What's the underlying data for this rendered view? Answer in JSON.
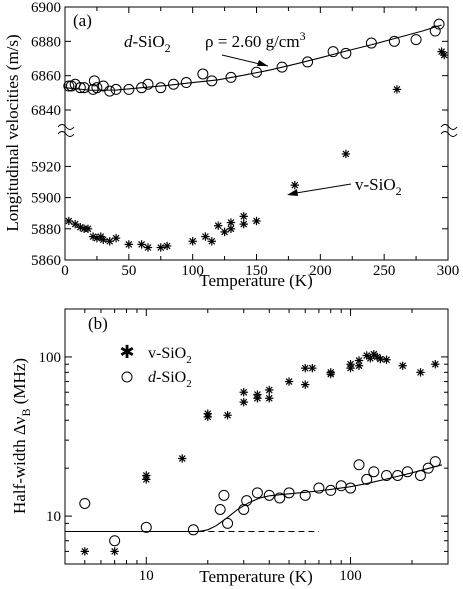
{
  "chart_data": [
    {
      "panel": "a",
      "type": "scatter",
      "title": "",
      "panel_label": "(a)",
      "xlabel": "Temperature (K)",
      "ylabel": "Longitudinal velocities (m/s)",
      "xlim": [
        0,
        300
      ],
      "y_broken_axis": {
        "lower": [
          5860,
          5935
        ],
        "upper": [
          6840,
          6900
        ]
      },
      "x_ticks": [
        "0",
        "50",
        "100",
        "150",
        "200",
        "250",
        "300"
      ],
      "y_ticks_upper": [
        "6900",
        "6880",
        "6860",
        "6840"
      ],
      "y_ticks_lower": [
        "5920",
        "5900",
        "5880",
        "5860"
      ],
      "annotations": {
        "density": {
          "prefix": "ρ = 2.60 g/cm",
          "sup": "3"
        },
        "d_sio2": {
          "italic": "d",
          "rest": "-SiO",
          "sub": "2"
        },
        "v_sio2": {
          "rest": "v-SiO",
          "sub": "2"
        }
      },
      "series": [
        {
          "marker": "circle",
          "x": [
            3,
            5,
            8,
            12,
            15,
            22,
            23,
            25,
            30,
            35,
            40,
            50,
            60,
            65,
            75,
            85,
            95,
            108,
            115,
            130,
            150,
            170,
            190,
            210,
            220,
            240,
            258,
            275,
            290,
            293
          ],
          "y": [
            6854,
            6854,
            6855,
            6853,
            6853,
            6852,
            6857,
            6853,
            6854,
            6851,
            6852,
            6852,
            6853,
            6855,
            6853,
            6855,
            6856,
            6861,
            6857,
            6859,
            6862,
            6865,
            6868,
            6874,
            6873,
            6879,
            6880,
            6881,
            6886,
            6890
          ]
        },
        {
          "marker": "star",
          "x": [
            3,
            8,
            12,
            15,
            18,
            22,
            25,
            28,
            30,
            35,
            40,
            50,
            60,
            65,
            75,
            80,
            100,
            110,
            115,
            125,
            130,
            140,
            150
          ],
          "y": [
            5885,
            5883,
            5881,
            5880,
            5880,
            5875,
            5874,
            5875,
            5873,
            5872,
            5874,
            5870,
            5870,
            5868,
            5868,
            5869,
            5872,
            5875,
            5872,
            5878,
            5880,
            5883,
            5885
          ]
        },
        {
          "marker": "star-upper",
          "x": [
            260,
            295,
            297
          ],
          "y": [
            6852,
            6874,
            6872
          ]
        },
        {
          "marker": "star-lower",
          "x": [
            220,
            180,
            140,
            130,
            120
          ],
          "y": [
            5928,
            5908,
            5888,
            5884,
            5882
          ]
        },
        {
          "marker": "line",
          "x": [
            0,
            20,
            40,
            60,
            80,
            100,
            120,
            140,
            160,
            180,
            200,
            220,
            240,
            260,
            280,
            295
          ],
          "y": [
            6853,
            6851.5,
            6851.6,
            6853,
            6854.3,
            6856,
            6857.6,
            6860.3,
            6863.2,
            6866.7,
            6870.4,
            6874.3,
            6878,
            6882,
            6886,
            6889.5
          ]
        }
      ]
    },
    {
      "panel": "b",
      "type": "scatter",
      "title": "",
      "panel_label": "(b)",
      "xlabel": "Temperature (K)",
      "ylabel": "Half-width Δν_B (MHz)",
      "ylabel_parts": {
        "main": "Half-width Δν",
        "sub": "B",
        "unit": " (MHz)"
      },
      "x_scale": "log",
      "y_scale": "log",
      "xlim": [
        4,
        300
      ],
      "ylim": [
        5,
        200
      ],
      "x_ticks": [
        "10",
        "100"
      ],
      "y_ticks": [
        "10",
        "100"
      ],
      "legend": [
        {
          "marker": "star",
          "text": "v-SiO",
          "sub": "2"
        },
        {
          "marker": "circle",
          "italic": "d",
          "text": "-SiO",
          "sub": "2"
        }
      ],
      "series": [
        {
          "marker": "star",
          "x": [
            5,
            7,
            10,
            10,
            15,
            20,
            20,
            25,
            30,
            30,
            35,
            35,
            40,
            40,
            50,
            60,
            60,
            65,
            80,
            80,
            100,
            100,
            110,
            110,
            120,
            125,
            130,
            135,
            140,
            150,
            180,
            220,
            260
          ],
          "y": [
            6,
            6,
            17,
            18,
            23,
            42,
            44,
            43,
            52,
            60,
            55,
            58,
            55,
            62,
            70,
            67,
            85,
            85,
            78,
            80,
            85,
            90,
            95,
            88,
            102,
            98,
            104,
            100,
            97,
            96,
            88,
            80,
            90
          ]
        },
        {
          "marker": "circle",
          "x": [
            5,
            7,
            10,
            17,
            23,
            24,
            25,
            30,
            31,
            35,
            40,
            45,
            50,
            60,
            70,
            80,
            90,
            100,
            110,
            120,
            130,
            150,
            170,
            190,
            220,
            240,
            260
          ],
          "y": [
            12,
            7,
            8.5,
            8.2,
            11,
            13.5,
            9,
            11,
            12.5,
            14,
            13.5,
            13,
            14,
            13.5,
            15,
            14.5,
            15.5,
            15,
            21,
            17,
            19,
            18,
            18,
            19,
            18,
            20,
            22
          ]
        },
        {
          "marker": "line",
          "x": [
            4,
            18,
            20,
            22,
            25,
            28,
            32,
            36,
            40,
            50,
            60,
            70,
            80,
            100,
            120,
            150,
            200,
            280
          ],
          "y": [
            8,
            8,
            8.2,
            8.7,
            9.8,
            11,
            12.2,
            13,
            13.4,
            13.8,
            14.1,
            14.4,
            14.7,
            15.3,
            16,
            17.1,
            18.7,
            21
          ]
        },
        {
          "marker": "dashed",
          "x": [
            18,
            70
          ],
          "y": [
            8,
            8
          ]
        }
      ]
    }
  ]
}
